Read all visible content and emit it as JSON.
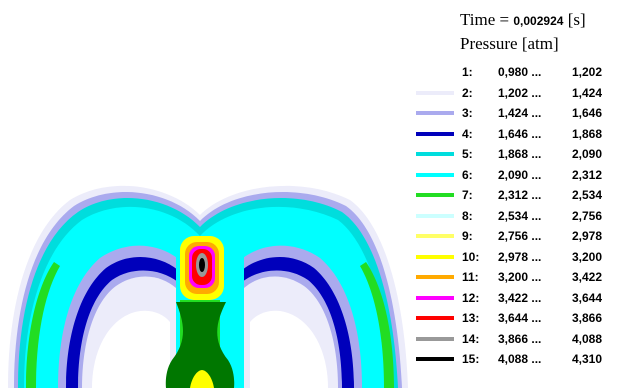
{
  "header": {
    "time_label": "Time = ",
    "time_value": "0,002924",
    "time_unit": " [s]",
    "pressure_label": "Pressure [atm]"
  },
  "legend": [
    {
      "index": "1:",
      "low": "0,980 ...",
      "high": "1,202",
      "color": "#ffffff"
    },
    {
      "index": "2:",
      "low": "1,202 ...",
      "high": "1,424",
      "color": "#ececfa"
    },
    {
      "index": "3:",
      "low": "1,424 ...",
      "high": "1,646",
      "color": "#aaaaee"
    },
    {
      "index": "4:",
      "low": "1,646 ...",
      "high": "1,868",
      "color": "#0000bb"
    },
    {
      "index": "5:",
      "low": "1,868 ...",
      "high": "2,090",
      "color": "#00dddd"
    },
    {
      "index": "6:",
      "low": "2,090 ...",
      "high": "2,312",
      "color": "#00ffff"
    },
    {
      "index": "7:",
      "low": "2,312 ...",
      "high": "2,534",
      "color": "#22dd22"
    },
    {
      "index": "8:",
      "low": "2,534 ...",
      "high": "2,756",
      "color": "#ccffff"
    },
    {
      "index": "9:",
      "low": "2,756 ...",
      "high": "2,978",
      "color": "#ffff66"
    },
    {
      "index": "10:",
      "low": "2,978 ...",
      "high": "3,200",
      "color": "#ffff00"
    },
    {
      "index": "11:",
      "low": "3,200 ...",
      "high": "3,422",
      "color": "#ffaa00"
    },
    {
      "index": "12:",
      "low": "3,422 ...",
      "high": "3,644",
      "color": "#ff00ff"
    },
    {
      "index": "13:",
      "low": "3,644 ...",
      "high": "3,866",
      "color": "#ff0000"
    },
    {
      "index": "14:",
      "low": "3,866 ...",
      "high": "4,088",
      "color": "#999999"
    },
    {
      "index": "15:",
      "low": "4,088 ...",
      "high": "4,310",
      "color": "#000000"
    }
  ]
}
